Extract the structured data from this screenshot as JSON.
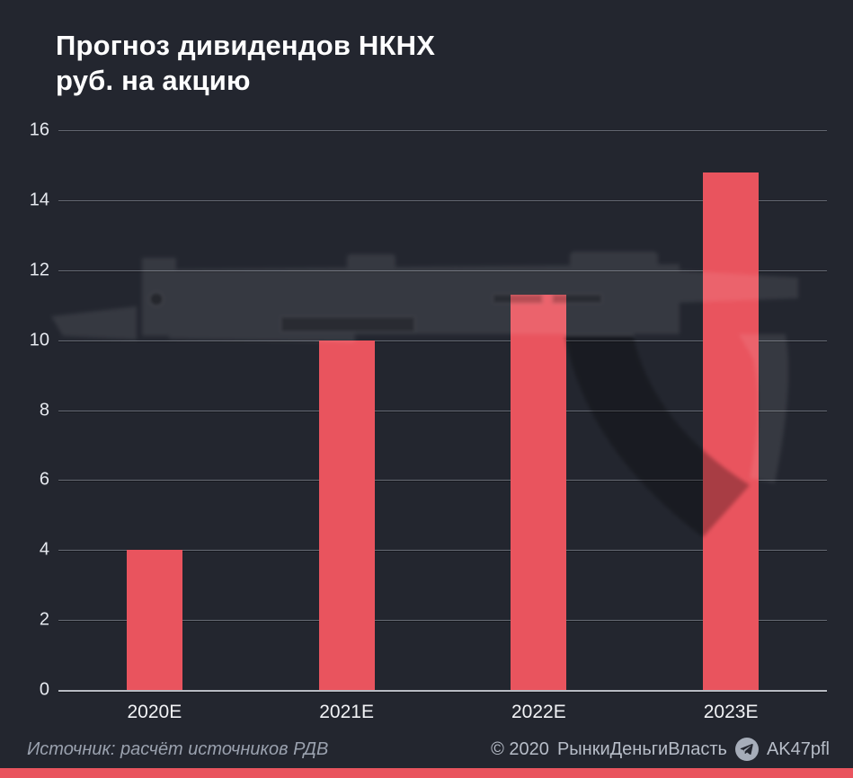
{
  "page": {
    "background": "#23262f",
    "accent": "#e9545e"
  },
  "title": {
    "line1": "Прогноз дивидендов НКНХ",
    "line2": "руб. на акцию"
  },
  "chart_data": {
    "type": "bar",
    "title": "Прогноз дивидендов НКНХ руб. на акцию",
    "categories": [
      "2020E",
      "2021E",
      "2022E",
      "2023E"
    ],
    "values": [
      4,
      10,
      11.3,
      14.8
    ],
    "xlabel": "",
    "ylabel": "",
    "ylim": [
      0,
      16
    ],
    "yticks": [
      0,
      2,
      4,
      6,
      8,
      10,
      12,
      14,
      16
    ],
    "grid": true,
    "legend": null,
    "bar_color": "#e9545e"
  },
  "watermark": {
    "name": "ak47-rifle-silhouette"
  },
  "footer": {
    "source": "Источник: расчёт источников РДВ",
    "copyright": "© 2020",
    "brand": "РынкиДеньгиВласть",
    "telegram_handle": "AK47pfl"
  }
}
